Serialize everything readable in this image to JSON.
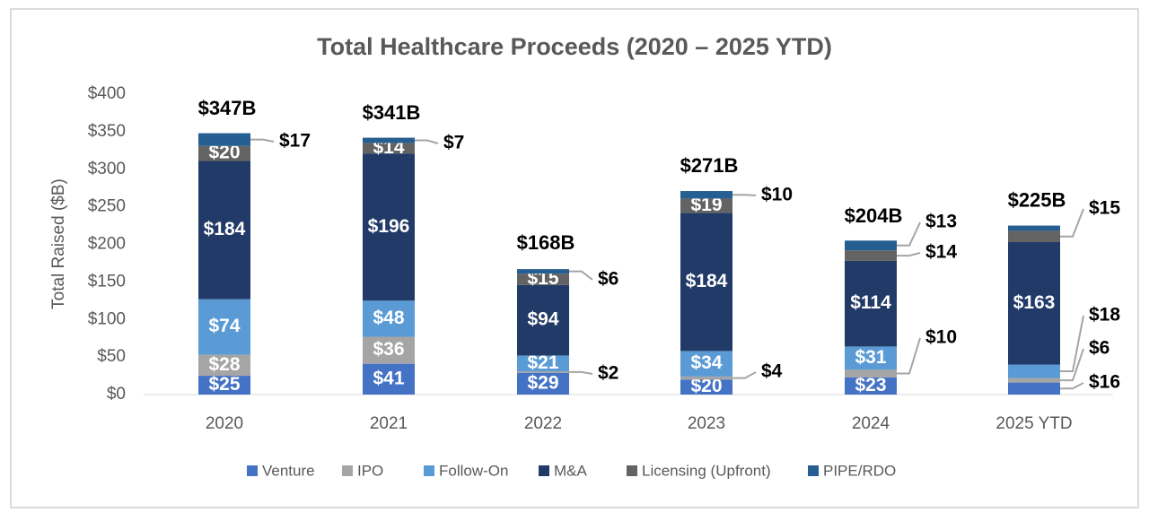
{
  "chart_data": {
    "type": "stacked_bar",
    "title": "Total Healthcare Proceeds (2020 – 2025 YTD)",
    "y_axis_label": "Total Raised ($B)",
    "categories": [
      "2020",
      "2021",
      "2022",
      "2023",
      "2024",
      "2025 YTD"
    ],
    "series": [
      {
        "name": "Venture",
        "color": "#4472c4",
        "values": [
          25,
          41,
          29,
          20,
          23,
          16
        ],
        "value_labels": [
          "$25",
          "$41",
          "$29",
          "$20",
          "$23",
          "$16"
        ]
      },
      {
        "name": "IPO",
        "color": "#a5a5a5",
        "values": [
          28,
          36,
          2,
          4,
          10,
          6
        ],
        "value_labels": [
          "$28",
          "$36",
          "$2",
          "$4",
          "$10",
          "$6"
        ]
      },
      {
        "name": "Follow-On",
        "color": "#5b9bd5",
        "values": [
          74,
          48,
          21,
          34,
          31,
          18
        ],
        "value_labels": [
          "$74",
          "$48",
          "$21",
          "$34",
          "$31",
          "$18"
        ]
      },
      {
        "name": "M&A",
        "color": "#223a68",
        "values": [
          184,
          196,
          94,
          184,
          114,
          163
        ],
        "value_labels": [
          "$184",
          "$196",
          "$94",
          "$184",
          "$114",
          "$163"
        ]
      },
      {
        "name": "Licensing (Upfront)",
        "color": "#636363",
        "values": [
          20,
          14,
          15,
          19,
          14,
          15
        ],
        "value_labels": [
          "$20",
          "$14",
          "$15",
          "$19",
          "$14",
          "$15"
        ]
      },
      {
        "name": "PIPE/RDO",
        "color": "#255e91",
        "values": [
          17,
          7,
          6,
          10,
          13,
          7
        ],
        "value_labels": [
          "$17",
          "$7",
          "$6",
          "$10",
          "$13",
          null
        ]
      }
    ],
    "totals": {
      "values": [
        347,
        341,
        168,
        271,
        204,
        225
      ],
      "value_labels": [
        "$347B",
        "$341B",
        "$168B",
        "$271B",
        "$204B",
        "$225B"
      ]
    },
    "ylim": [
      0,
      400
    ],
    "yticks": [
      {
        "value": 0,
        "label": "$0"
      },
      {
        "value": 50,
        "label": "$50"
      },
      {
        "value": 100,
        "label": "$100"
      },
      {
        "value": 150,
        "label": "$150"
      },
      {
        "value": 200,
        "label": "$200"
      },
      {
        "value": 250,
        "label": "$250"
      },
      {
        "value": 300,
        "label": "$300"
      },
      {
        "value": 350,
        "label": "$350"
      },
      {
        "value": 400,
        "label": "$400"
      }
    ],
    "grid": false,
    "legend": "bottom"
  }
}
